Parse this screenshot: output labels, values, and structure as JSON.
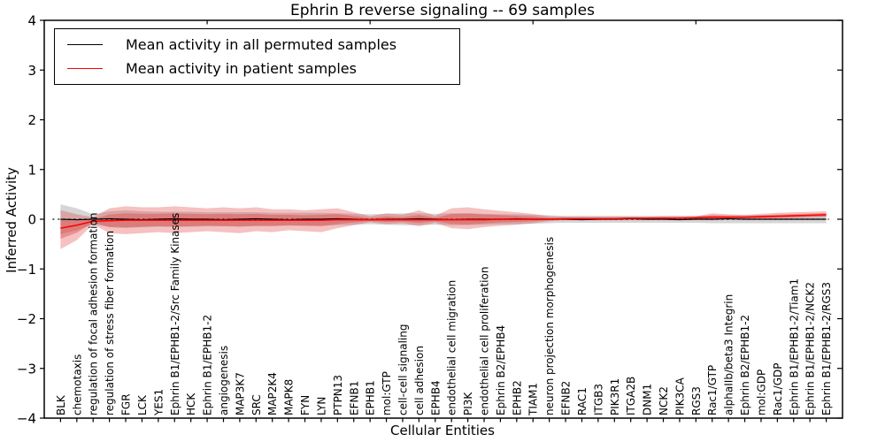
{
  "chart": {
    "title": "Ephrin B reverse signaling -- 69 samples",
    "ylabel": "Inferred Activity",
    "xlabel": "Cellular Entities",
    "legend": {
      "permuted_label": "Mean activity in all permuted samples",
      "patient_label": "Mean activity in patient samples"
    },
    "colors": {
      "permuted_line": "#000000",
      "patient_line": "#ff0000",
      "patient_band": "#dd3333",
      "permuted_band": "#999999"
    }
  },
  "chart_data": {
    "type": "line",
    "title": "Ephrin B reverse signaling -- 69 samples",
    "xlabel": "Cellular Entities",
    "ylabel": "Inferred Activity",
    "ylim": [
      -4,
      4
    ],
    "ytick_values": [
      4,
      3,
      2,
      1,
      0,
      -1,
      -2,
      -3,
      -4
    ],
    "ytick_labels": [
      "4",
      "3",
      "2",
      "1",
      "0",
      "−1",
      "−2",
      "−3",
      "−4"
    ],
    "top_tick_data_positions": [
      10,
      20,
      30,
      40
    ],
    "grid": false,
    "legend_position": "upper left",
    "zero_line": true,
    "categories": [
      "BLK",
      "chemotaxis",
      "regulation of focal adhesion formation",
      "regulation of stress fiber formation",
      "FGR",
      "LCK",
      "YES1",
      "Ephrin B1/EPHB1-2/Src Family Kinases",
      "HCK",
      "Ephrin B1/EPHB1-2",
      "angiogenesis",
      "MAP3K7",
      "SRC",
      "MAP2K4",
      "MAPK8",
      "FYN",
      "LYN",
      "PTPN13",
      "EFNB1",
      "EPHB1",
      "mol:GTP",
      "cell-cell signaling",
      "cell adhesion",
      "EPHB4",
      "endothelial cell migration",
      "PI3K",
      "endothelial cell proliferation",
      "Ephrin B2/EPHB4",
      "EPHB2",
      "TIAM1",
      "neuron projection morphogenesis",
      "EFNB2",
      "RAC1",
      "ITGB3",
      "PIK3R1",
      "ITGA2B",
      "DNM1",
      "NCK2",
      "PIK3CA",
      "RGS3",
      "Rac1/GTP",
      "alphaIIb/beta3 Integrin",
      "Ephrin B2/EPHB1-2",
      "mol:GDP",
      "Rac1/GDP",
      "Ephrin B1/EPHB1-2/Tiam1",
      "Ephrin B1/EPHB1-2/NCK2",
      "Ephrin B1/EPHB1-2/RGS3"
    ],
    "series": [
      {
        "name": "Mean activity in all permuted samples",
        "color": "#000000",
        "values": [
          0.0,
          -0.01,
          0.0,
          0.01,
          0.0,
          -0.01,
          0.0,
          0.01,
          0.0,
          0.0,
          -0.01,
          0.0,
          0.01,
          0.0,
          -0.01,
          0.0,
          0.0,
          0.01,
          0.0,
          -0.01,
          0.0,
          0.0,
          0.01,
          0.0,
          -0.01,
          0.0,
          0.0,
          0.0,
          0.01,
          0.0,
          0.0,
          0.0,
          -0.01,
          0.0,
          0.0,
          0.01,
          0.0,
          0.0,
          -0.01,
          0.0,
          0.0,
          0.01,
          0.0,
          0.0,
          0.0,
          0.0,
          0.0,
          0.0
        ]
      },
      {
        "name": "Mean activity in patient samples",
        "color": "#ff0000",
        "values": [
          -0.18,
          -0.12,
          -0.04,
          -0.03,
          -0.02,
          -0.02,
          -0.02,
          -0.02,
          -0.02,
          -0.02,
          -0.02,
          -0.02,
          -0.02,
          -0.02,
          -0.02,
          -0.02,
          -0.02,
          -0.01,
          -0.01,
          -0.01,
          -0.01,
          -0.01,
          -0.01,
          -0.01,
          -0.01,
          -0.01,
          -0.01,
          0.0,
          0.0,
          0.0,
          0.0,
          0.01,
          0.01,
          0.01,
          0.01,
          0.02,
          0.02,
          0.02,
          0.02,
          0.03,
          0.04,
          0.04,
          0.04,
          0.05,
          0.06,
          0.07,
          0.08,
          0.09
        ]
      }
    ],
    "bands": {
      "patient_upper": [
        0.18,
        0.1,
        0.04,
        0.22,
        0.26,
        0.24,
        0.24,
        0.26,
        0.24,
        0.22,
        0.24,
        0.22,
        0.24,
        0.2,
        0.2,
        0.18,
        0.2,
        0.22,
        0.14,
        0.06,
        0.12,
        0.09,
        0.18,
        0.07,
        0.22,
        0.24,
        0.2,
        0.17,
        0.14,
        0.11,
        0.06,
        0.05,
        0.05,
        0.05,
        0.05,
        0.05,
        0.05,
        0.06,
        0.06,
        0.06,
        0.12,
        0.1,
        0.09,
        0.11,
        0.13,
        0.14,
        0.15,
        0.16
      ],
      "patient_lower": [
        -0.6,
        -0.42,
        -0.1,
        -0.28,
        -0.3,
        -0.28,
        -0.26,
        -0.28,
        -0.26,
        -0.24,
        -0.26,
        -0.28,
        -0.24,
        -0.26,
        -0.22,
        -0.24,
        -0.26,
        -0.18,
        -0.12,
        -0.06,
        -0.1,
        -0.08,
        -0.14,
        -0.07,
        -0.18,
        -0.2,
        -0.16,
        -0.13,
        -0.11,
        -0.08,
        -0.04,
        -0.02,
        -0.02,
        -0.02,
        -0.02,
        -0.02,
        -0.02,
        -0.01,
        -0.01,
        -0.01,
        -0.02,
        -0.01,
        0.0,
        0.0,
        0.01,
        0.02,
        0.03,
        0.04
      ],
      "permuted_half_width": [
        0.3,
        0.22,
        0.1,
        0.16,
        0.18,
        0.16,
        0.15,
        0.15,
        0.15,
        0.14,
        0.14,
        0.14,
        0.14,
        0.13,
        0.13,
        0.13,
        0.13,
        0.12,
        0.11,
        0.1,
        0.11,
        0.12,
        0.12,
        0.11,
        0.12,
        0.12,
        0.11,
        0.1,
        0.1,
        0.09,
        0.08,
        0.07,
        0.07,
        0.07,
        0.07,
        0.07,
        0.07,
        0.07,
        0.07,
        0.07,
        0.08,
        0.08,
        0.08,
        0.08,
        0.08,
        0.08,
        0.08,
        0.08
      ]
    }
  }
}
